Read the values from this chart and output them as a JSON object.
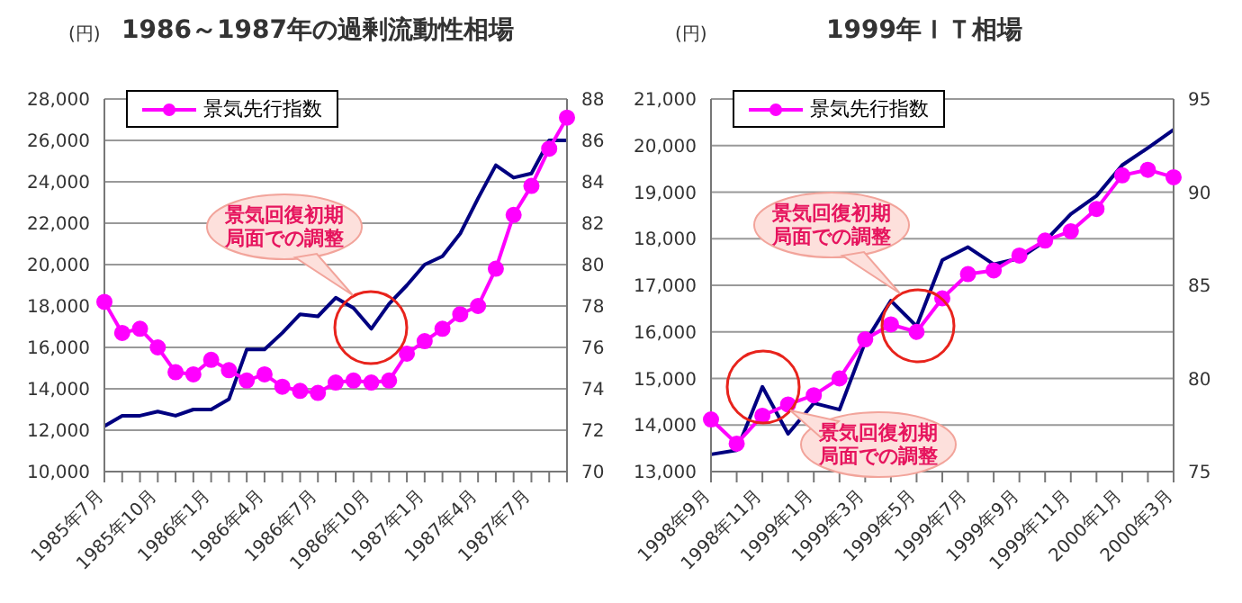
{
  "chart_data": [
    {
      "type": "line",
      "title": "1986～1987年の過剰流動性相場",
      "ylabel": "(円)",
      "categories": [
        "1985年7月",
        null,
        null,
        "1985年10月",
        null,
        null,
        "1986年1月",
        null,
        null,
        "1986年4月",
        null,
        null,
        "1986年7月",
        null,
        null,
        "1986年10月",
        null,
        null,
        "1987年1月",
        null,
        null,
        "1987年4月",
        null,
        null,
        "1987年7月",
        null,
        null
      ],
      "series": [
        {
          "color": "#000080",
          "marker": "none",
          "values": [
            12200,
            12700,
            12700,
            12900,
            12700,
            13000,
            13000,
            13500,
            15900,
            15900,
            16700,
            17600,
            17500,
            18400,
            17900,
            16900,
            18100,
            19000,
            20000,
            20400,
            21500,
            23200,
            24800,
            24200,
            24400,
            26000,
            26000
          ]
        },
        {
          "name": "景気先行指数",
          "color": "#ff00ff",
          "marker": "circle",
          "axis": "y2",
          "values": [
            78.2,
            76.7,
            76.9,
            76.0,
            74.8,
            74.7,
            75.4,
            74.9,
            74.4,
            74.7,
            74.1,
            73.9,
            73.8,
            74.3,
            74.4,
            74.3,
            74.4,
            75.7,
            76.3,
            76.9,
            77.6,
            78.0,
            79.8,
            82.4,
            83.8,
            85.6,
            87.1
          ]
        }
      ],
      "ylim": [
        10000,
        28000
      ],
      "yticks": [
        {
          "value": 10000,
          "label": "10,000"
        },
        {
          "value": 12000,
          "label": "12,000"
        },
        {
          "value": 14000,
          "label": "14,000"
        },
        {
          "value": 16000,
          "label": "16,000"
        },
        {
          "value": 18000,
          "label": "18,000"
        },
        {
          "value": 20000,
          "label": "20,000"
        },
        {
          "value": 22000,
          "label": "22,000"
        },
        {
          "value": 24000,
          "label": "24,000"
        },
        {
          "value": 26000,
          "label": "26,000"
        },
        {
          "value": 28000,
          "label": "28,000"
        }
      ],
      "y2lim": [
        70,
        88
      ],
      "y2ticks": [
        70,
        72,
        74,
        76,
        78,
        80,
        82,
        84,
        86,
        88
      ],
      "grid": "y",
      "legend": "top left",
      "line_style": "solid",
      "annotations": [
        "景気回復初期局面での調整"
      ]
    },
    {
      "type": "line",
      "title": "1999年ＩＴ相場",
      "ylabel": "(円)",
      "categories": [
        "1998年9月",
        null,
        "1998年11月",
        null,
        "1999年1月",
        null,
        "1999年3月",
        null,
        "1999年5月",
        null,
        "1999年7月",
        null,
        "1999年9月",
        null,
        "1999年11月",
        null,
        "2000年1月",
        null,
        "2000年3月"
      ],
      "series": [
        {
          "color": "#000080",
          "marker": "none",
          "values": [
            13370,
            13460,
            14820,
            13810,
            14470,
            14330,
            15780,
            16670,
            16120,
            17540,
            17820,
            17450,
            17580,
            17950,
            18530,
            18920,
            19580,
            19950,
            20340
          ]
        },
        {
          "name": "景気先行指数",
          "color": "#ff00ff",
          "marker": "circle",
          "axis": "y2",
          "values": [
            77.8,
            76.5,
            78.0,
            78.6,
            79.1,
            80.0,
            82.1,
            82.9,
            82.5,
            84.3,
            85.6,
            85.8,
            86.6,
            87.4,
            87.9,
            89.1,
            90.9,
            91.2,
            90.8
          ]
        }
      ],
      "ylim": [
        13000,
        21000
      ],
      "yticks": [
        {
          "value": 13000,
          "label": "13,000"
        },
        {
          "value": 14000,
          "label": "14,000"
        },
        {
          "value": 15000,
          "label": "15,000"
        },
        {
          "value": 16000,
          "label": "16,000"
        },
        {
          "value": 17000,
          "label": "17,000"
        },
        {
          "value": 18000,
          "label": "18,000"
        },
        {
          "value": 19000,
          "label": "19,000"
        },
        {
          "value": 20000,
          "label": "20,000"
        },
        {
          "value": 21000,
          "label": "21,000"
        }
      ],
      "y2lim": [
        75,
        95
      ],
      "y2ticks": [
        75,
        80,
        85,
        90,
        95
      ],
      "grid": "y",
      "legend": "top left",
      "line_style": "solid",
      "annotations": [
        "景気回復初期局面での調整",
        "景気回復初期局面での調整"
      ]
    }
  ]
}
